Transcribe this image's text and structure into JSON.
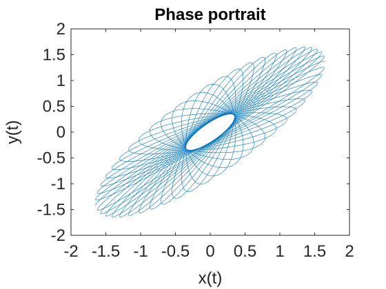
{
  "chart_data": {
    "type": "line",
    "title": "Phase portrait",
    "xlabel": "x(t)",
    "ylabel": "y(t)",
    "xlim": [
      -2,
      2
    ],
    "ylim": [
      -2,
      2
    ],
    "xticks": [
      -2,
      -1.5,
      -1,
      -0.5,
      0,
      0.5,
      1,
      1.5,
      2
    ],
    "xtick_labels": [
      "-2",
      "-1.5",
      "-1",
      "-0.5",
      "0",
      "0.5",
      "1",
      "1.5",
      "2"
    ],
    "yticks": [
      -2,
      -1.5,
      -1,
      -0.5,
      0,
      0.5,
      1,
      1.5,
      2
    ],
    "ytick_labels": [
      "-2",
      "-1.5",
      "-1",
      "-0.5",
      "0",
      "0.5",
      "1",
      "1.5",
      "2"
    ],
    "grid": false,
    "box": true,
    "series": [
      {
        "color": "#0072BD",
        "equation": {
          "x": "cos(t) + 0.65*cos(1.04*t)",
          "y": "cos(t - 0.6) + 0.65*cos(1.04*t + 0.6)"
        },
        "t_range": [
          0,
          154
        ],
        "samples": 16000
      }
    ]
  }
}
